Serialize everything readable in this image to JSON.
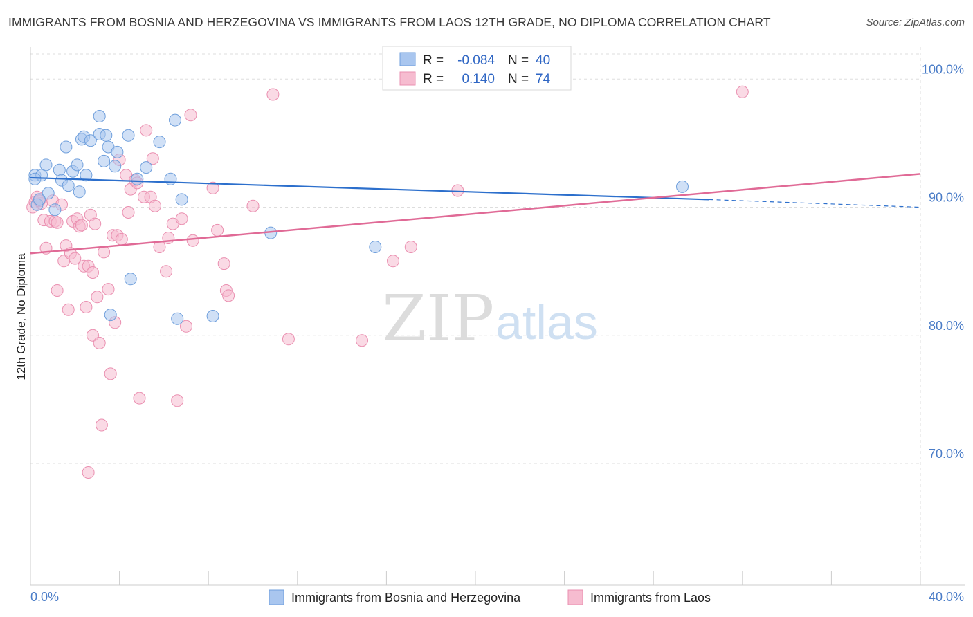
{
  "header": {
    "title": "IMMIGRANTS FROM BOSNIA AND HERZEGOVINA VS IMMIGRANTS FROM LAOS 12TH GRADE, NO DIPLOMA CORRELATION CHART",
    "source": "Source: ZipAtlas.com"
  },
  "watermark": {
    "zip": "ZIP",
    "atlas": "atlas"
  },
  "colors": {
    "blue_fill": "#a9c6ef",
    "blue_stroke": "#6f9fdc",
    "blue_line": "#2c6fcc",
    "pink_fill": "#f6bcd0",
    "pink_stroke": "#ea8fb0",
    "pink_line": "#e06a96",
    "grid": "#dddddd",
    "tick_text": "#4a7cc7"
  },
  "legend": {
    "rows": [
      {
        "r_label": "R =",
        "r_value": "-0.084",
        "n_label": "N =",
        "n_value": "40"
      },
      {
        "r_label": "R =",
        "r_value": "0.140",
        "n_label": "N =",
        "n_value": "74"
      }
    ]
  },
  "chart_data": {
    "type": "scatter",
    "title": "IMMIGRANTS FROM BOSNIA AND HERZEGOVINA VS IMMIGRANTS FROM LAOS 12TH GRADE, NO DIPLOMA CORRELATION CHART",
    "xlabel": "",
    "ylabel": "12th Grade, No Diploma",
    "xlim": [
      0,
      40
    ],
    "ylim": [
      60.5,
      102.5
    ],
    "x_tick_labels": [
      "0.0%",
      "40.0%"
    ],
    "y_ticks": [
      70,
      80,
      90,
      100
    ],
    "y_tick_labels": [
      "70.0%",
      "80.0%",
      "90.0%",
      "100.0%"
    ],
    "grid": true,
    "legend_position": "top-center",
    "series": [
      {
        "name": "Immigrants from Bosnia and Herzegovina",
        "color": "#a9c6ef",
        "r": -0.084,
        "n": 40,
        "trend": {
          "x": [
            0,
            30.5
          ],
          "y": [
            92.3,
            90.6
          ],
          "dashed_to": [
            40,
            90.0
          ]
        },
        "points": [
          [
            0.2,
            92.5
          ],
          [
            0.3,
            90.2
          ],
          [
            0.5,
            92.5
          ],
          [
            0.7,
            93.3
          ],
          [
            0.8,
            91.1
          ],
          [
            1.1,
            89.8
          ],
          [
            1.3,
            92.9
          ],
          [
            1.4,
            92.1
          ],
          [
            1.6,
            94.7
          ],
          [
            1.7,
            91.7
          ],
          [
            1.9,
            92.8
          ],
          [
            2.1,
            93.3
          ],
          [
            2.2,
            91.2
          ],
          [
            2.3,
            95.3
          ],
          [
            2.4,
            95.5
          ],
          [
            2.7,
            95.2
          ],
          [
            3.1,
            95.7
          ],
          [
            3.1,
            97.1
          ],
          [
            3.3,
            93.6
          ],
          [
            3.4,
            95.6
          ],
          [
            3.5,
            94.7
          ],
          [
            3.6,
            81.6
          ],
          [
            3.8,
            93.2
          ],
          [
            3.9,
            94.3
          ],
          [
            4.4,
            95.6
          ],
          [
            4.5,
            84.4
          ],
          [
            4.8,
            92.2
          ],
          [
            5.2,
            93.1
          ],
          [
            5.8,
            95.1
          ],
          [
            6.3,
            92.2
          ],
          [
            6.6,
            81.3
          ],
          [
            6.8,
            90.6
          ],
          [
            6.5,
            96.8
          ],
          [
            8.2,
            81.5
          ],
          [
            10.8,
            88.0
          ],
          [
            15.5,
            86.9
          ],
          [
            29.3,
            91.6
          ],
          [
            0.2,
            92.2
          ],
          [
            0.4,
            90.6
          ],
          [
            2.5,
            92.5
          ]
        ]
      },
      {
        "name": "Immigrants from Laos",
        "color": "#f6bcd0",
        "r": 0.14,
        "n": 74,
        "trend": {
          "x": [
            0,
            40
          ],
          "y": [
            86.4,
            92.6
          ]
        },
        "points": [
          [
            0.1,
            90.0
          ],
          [
            0.2,
            90.4
          ],
          [
            0.3,
            90.8
          ],
          [
            0.5,
            90.3
          ],
          [
            0.6,
            89.0
          ],
          [
            0.7,
            86.8
          ],
          [
            0.9,
            88.9
          ],
          [
            1.0,
            90.5
          ],
          [
            1.1,
            88.9
          ],
          [
            1.2,
            83.5
          ],
          [
            1.4,
            90.2
          ],
          [
            1.5,
            85.8
          ],
          [
            1.6,
            87.0
          ],
          [
            1.7,
            82.0
          ],
          [
            1.8,
            86.4
          ],
          [
            1.9,
            88.9
          ],
          [
            2.0,
            86.0
          ],
          [
            2.1,
            89.1
          ],
          [
            2.2,
            88.5
          ],
          [
            2.3,
            88.6
          ],
          [
            2.4,
            85.4
          ],
          [
            2.5,
            82.2
          ],
          [
            2.6,
            85.4
          ],
          [
            2.7,
            89.4
          ],
          [
            2.8,
            80.0
          ],
          [
            2.9,
            88.7
          ],
          [
            3.0,
            83.0
          ],
          [
            3.1,
            79.4
          ],
          [
            3.2,
            73.0
          ],
          [
            3.3,
            86.5
          ],
          [
            3.5,
            83.6
          ],
          [
            3.6,
            77.0
          ],
          [
            3.7,
            87.8
          ],
          [
            3.8,
            81.0
          ],
          [
            3.9,
            87.8
          ],
          [
            4.0,
            93.7
          ],
          [
            4.1,
            87.5
          ],
          [
            4.3,
            92.5
          ],
          [
            4.4,
            89.6
          ],
          [
            4.5,
            91.4
          ],
          [
            4.7,
            92.1
          ],
          [
            4.9,
            75.1
          ],
          [
            5.1,
            90.8
          ],
          [
            5.2,
            96.0
          ],
          [
            5.4,
            90.8
          ],
          [
            5.5,
            93.8
          ],
          [
            5.6,
            90.1
          ],
          [
            5.8,
            86.9
          ],
          [
            6.1,
            85.0
          ],
          [
            6.2,
            87.6
          ],
          [
            6.4,
            88.7
          ],
          [
            6.6,
            74.9
          ],
          [
            6.8,
            89.1
          ],
          [
            7.0,
            80.7
          ],
          [
            7.2,
            97.2
          ],
          [
            7.3,
            87.4
          ],
          [
            8.2,
            91.5
          ],
          [
            8.4,
            88.2
          ],
          [
            8.7,
            85.6
          ],
          [
            8.8,
            83.5
          ],
          [
            8.9,
            83.1
          ],
          [
            10.0,
            90.1
          ],
          [
            10.9,
            98.8
          ],
          [
            11.6,
            79.7
          ],
          [
            14.9,
            79.6
          ],
          [
            16.3,
            85.8
          ],
          [
            17.1,
            86.9
          ],
          [
            19.2,
            91.3
          ],
          [
            32.0,
            99.0
          ],
          [
            2.6,
            69.3
          ],
          [
            1.2,
            88.8
          ],
          [
            0.4,
            90.5
          ],
          [
            2.8,
            84.9
          ],
          [
            4.8,
            91.9
          ]
        ]
      }
    ]
  },
  "bottom_legend": {
    "items": [
      {
        "label": "Immigrants from Bosnia and Herzegovina"
      },
      {
        "label": "Immigrants from Laos"
      }
    ]
  }
}
